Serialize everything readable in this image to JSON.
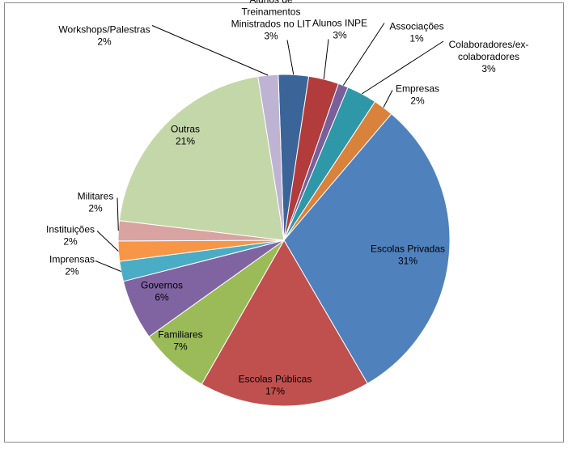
{
  "chart_data": {
    "type": "pie",
    "title": "",
    "slices": [
      {
        "label": "Alunos de Treinamentos Ministrados no LIT",
        "label_lines": [
          "Alunos de",
          "Treinamentos",
          "Ministrados no LIT"
        ],
        "value": 3,
        "value_label": "3%",
        "color": "#3B6598"
      },
      {
        "label": "Alunos INPE",
        "label_lines": [
          "Alunos INPE"
        ],
        "value": 3,
        "value_label": "3%",
        "color": "#B23B3B"
      },
      {
        "label": "Associações",
        "label_lines": [
          "Associações"
        ],
        "value": 1,
        "value_label": "1%",
        "color": "#7A5F9A"
      },
      {
        "label": "Colaboradores/ex-colaboradores",
        "label_lines": [
          "Colaboradores/ex-",
          "colaboradores"
        ],
        "value": 3,
        "value_label": "3%",
        "color": "#2E97A8"
      },
      {
        "label": "Empresas",
        "label_lines": [
          "Empresas"
        ],
        "value": 2,
        "value_label": "2%",
        "color": "#D9823B"
      },
      {
        "label": "Escolas Privadas",
        "label_lines": [
          "Escolas Privadas"
        ],
        "value": 31,
        "value_label": "31%",
        "color": "#4F81BD"
      },
      {
        "label": "Escolas Públicas",
        "label_lines": [
          "Escolas Públicas"
        ],
        "value": 17,
        "value_label": "17%",
        "color": "#C0504D"
      },
      {
        "label": "Familiares",
        "label_lines": [
          "Familiares"
        ],
        "value": 7,
        "value_label": "7%",
        "color": "#9BBB59"
      },
      {
        "label": "Governos",
        "label_lines": [
          "Governos"
        ],
        "value": 6,
        "value_label": "6%",
        "color": "#8064A2"
      },
      {
        "label": "Imprensas",
        "label_lines": [
          "Imprensas"
        ],
        "value": 2,
        "value_label": "2%",
        "color": "#4BACC6"
      },
      {
        "label": "Instituições",
        "label_lines": [
          "Instituições"
        ],
        "value": 2,
        "value_label": "2%",
        "color": "#F79646"
      },
      {
        "label": "Militares",
        "label_lines": [
          "Militares"
        ],
        "value": 2,
        "value_label": "2%",
        "color": "#D9A3A1"
      },
      {
        "label": "Outras",
        "label_lines": [
          "Outras"
        ],
        "value": 21,
        "value_label": "21%",
        "color": "#C4D7A9"
      },
      {
        "label": "Workshops/Palestras",
        "label_lines": [
          "Workshops/Palestras"
        ],
        "value": 2,
        "value_label": "2%",
        "color": "#BFB3D3"
      }
    ]
  }
}
